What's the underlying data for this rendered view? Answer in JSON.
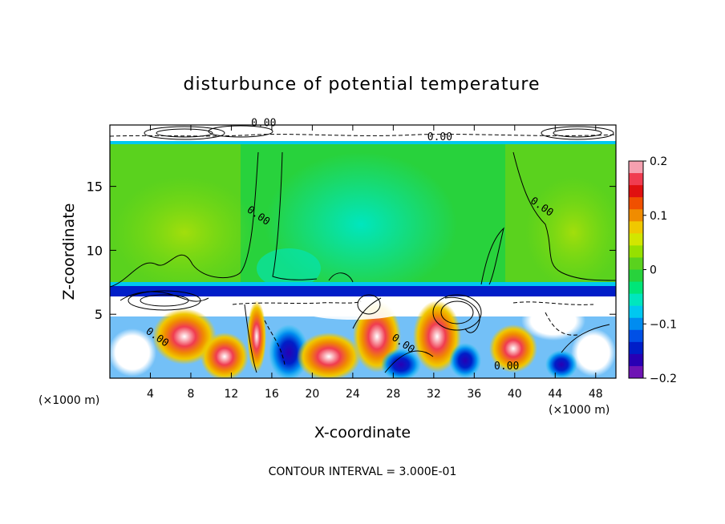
{
  "chart_data": {
    "type": "heatmap",
    "title": "disturbunce of potential temperature",
    "xlabel": "X-coordinate",
    "ylabel": "Z-coordinate",
    "x_unit_left": "(×1000 m)",
    "x_unit_right": "(×1000 m)",
    "footer": "CONTOUR INTERVAL = 3.000E-01",
    "xlim": [
      0,
      50
    ],
    "ylim": [
      0,
      19.8
    ],
    "x_ticks": [
      4,
      8,
      12,
      16,
      20,
      24,
      28,
      32,
      36,
      40,
      44,
      48
    ],
    "y_ticks": [
      5,
      10,
      15
    ],
    "colorbar": {
      "min": -0.2,
      "max": 0.2,
      "ticks": [
        "0.2",
        "0.1",
        "0",
        "−0.1",
        "−0.2"
      ],
      "colors": [
        "#f5a0b0",
        "#f03c50",
        "#e01010",
        "#f05000",
        "#f08c00",
        "#f0c800",
        "#d2e600",
        "#96e000",
        "#5ad21e",
        "#28d23c",
        "#00e678",
        "#00e6be",
        "#00c8f0",
        "#008cf0",
        "#0050e6",
        "#001ec8",
        "#2800b4",
        "#6e14b4"
      ]
    },
    "contour_labels": [
      {
        "text": "0.00",
        "x": 14.5,
        "z": 12.5
      },
      {
        "text": "0.00",
        "x": 42.5,
        "z": 13.2
      },
      {
        "text": "0.00",
        "x": 4.5,
        "z": 3.0
      },
      {
        "text": "0.00",
        "x": 28.8,
        "z": 2.5
      },
      {
        "text": "0.00",
        "x": 39.2,
        "z": 0.7
      },
      {
        "text": "0.00",
        "x": 15.2,
        "z": 19.7
      },
      {
        "text": "0.00",
        "x": 32.6,
        "z": 18.6
      }
    ]
  }
}
